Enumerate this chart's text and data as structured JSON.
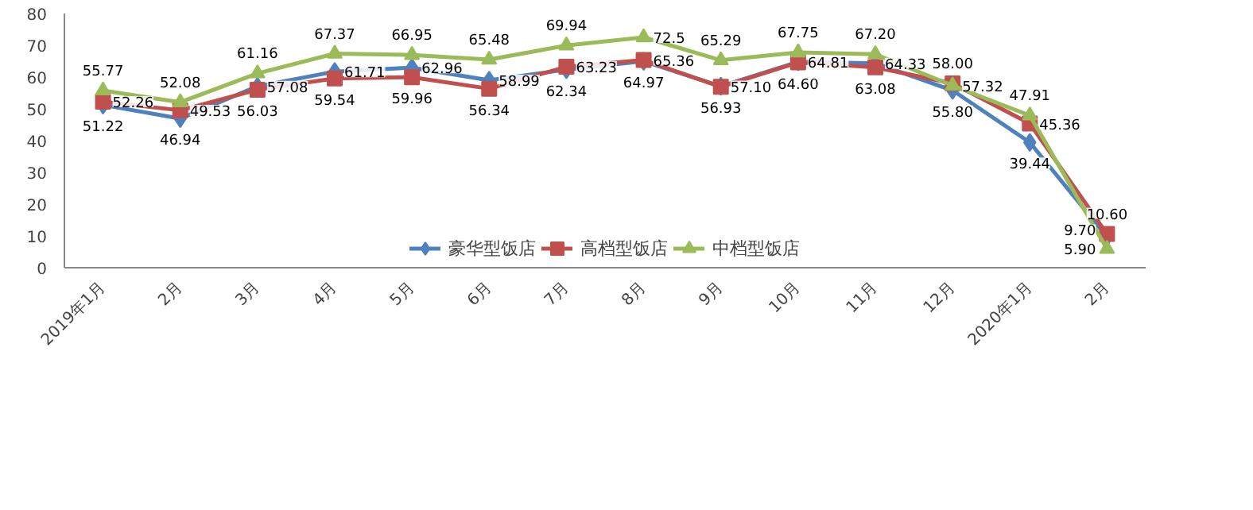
{
  "chart_data": {
    "type": "line",
    "categories": [
      "2019年1月",
      "2月",
      "3月",
      "4月",
      "5月",
      "6月",
      "7月",
      "8月",
      "9月",
      "10月",
      "11月",
      "12月",
      "2020年1月",
      "2月"
    ],
    "series": [
      {
        "name": "豪华型饭店",
        "color": "#4f81bd",
        "marker": "diamond",
        "values": [
          51.22,
          46.94,
          57.08,
          61.71,
          62.96,
          58.99,
          62.34,
          64.97,
          57.1,
          64.81,
          64.33,
          55.8,
          39.44,
          9.7
        ],
        "value_labels": [
          "51.22",
          "46.94",
          "57.08",
          "61.71",
          "62.96",
          "58.99",
          "62.34",
          "64.97",
          "57.10",
          "64.81",
          "64.33",
          "55.80",
          "39.44",
          "9.70"
        ]
      },
      {
        "name": "高档型饭店",
        "color": "#c0504d",
        "marker": "square",
        "values": [
          52.26,
          49.53,
          56.03,
          59.54,
          59.96,
          56.34,
          63.23,
          65.36,
          56.93,
          64.6,
          63.08,
          58.0,
          45.36,
          10.6
        ],
        "value_labels": [
          "52.26",
          "49.53",
          "56.03",
          "59.54",
          "59.96",
          "56.34",
          "63.23",
          "65.36",
          "56.93",
          "64.60",
          "63.08",
          "58.00",
          "45.36",
          "10.60"
        ]
      },
      {
        "name": "中档型饭店",
        "color": "#9bbb59",
        "marker": "triangle",
        "values": [
          55.77,
          52.08,
          61.16,
          67.37,
          66.95,
          65.48,
          69.94,
          72.5,
          65.29,
          67.75,
          67.2,
          57.32,
          47.91,
          5.9
        ],
        "value_labels": [
          "55.77",
          "52.08",
          "61.16",
          "67.37",
          "66.95",
          "65.48",
          "69.94",
          "72.5",
          "65.29",
          "67.75",
          "67.20",
          "57.32",
          "47.91",
          "5.90"
        ]
      }
    ],
    "ylim": [
      0,
      80
    ],
    "yticks": [
      0,
      10,
      20,
      30,
      40,
      50,
      60,
      70,
      80
    ],
    "grid": false,
    "legend": "bottom"
  }
}
